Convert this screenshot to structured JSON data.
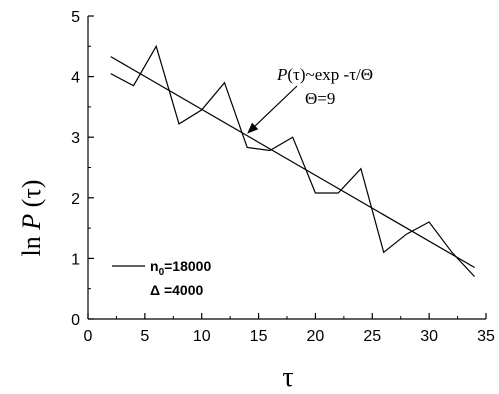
{
  "chart_data": {
    "type": "line",
    "xlim": [
      0,
      35
    ],
    "ylim": [
      0,
      5
    ],
    "x_ticks": [
      0,
      5,
      10,
      15,
      20,
      25,
      30,
      35
    ],
    "y_ticks": [
      0,
      1,
      2,
      3,
      4,
      5
    ],
    "xlabel": "τ",
    "ylabel": {
      "prefix": "ln ",
      "var": "P",
      "suffix": " (τ)"
    },
    "grid": false,
    "series": [
      {
        "x": [
          2,
          4,
          6,
          8,
          10,
          12,
          14,
          16,
          18,
          20,
          22,
          24,
          26,
          28,
          30,
          32,
          34
        ],
        "y": [
          4.05,
          3.85,
          4.5,
          3.22,
          3.45,
          3.9,
          2.83,
          2.78,
          3.0,
          2.08,
          2.08,
          2.48,
          1.1,
          1.4,
          1.6,
          1.1,
          0.7
        ]
      },
      {
        "x": [
          2,
          34
        ],
        "y": [
          4.33,
          0.85
        ]
      }
    ],
    "annotation": {
      "line1": {
        "prefix_var": "P",
        "text": "(τ)~exp -τ/Θ"
      },
      "line2": "Θ=9",
      "arrow_target": {
        "x": 14,
        "y": 3.06
      }
    },
    "legend": {
      "placement": "bottom-left",
      "line1": {
        "base": "n",
        "subscript": "0",
        "suffix": "=18000"
      },
      "line2": "Δ =4000"
    }
  }
}
